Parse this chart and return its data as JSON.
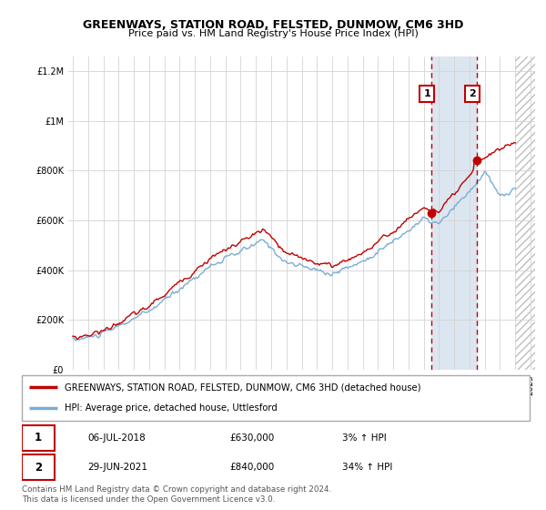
{
  "title": "GREENWAYS, STATION ROAD, FELSTED, DUNMOW, CM6 3HD",
  "subtitle": "Price paid vs. HM Land Registry's House Price Index (HPI)",
  "hpi_label": "HPI: Average price, detached house, Uttlesford",
  "property_label": "GREENWAYS, STATION ROAD, FELSTED, DUNMOW, CM6 3HD (detached house)",
  "annotation1_date": "06-JUL-2018",
  "annotation1_price": "£630,000",
  "annotation1_hpi": "3% ↑ HPI",
  "annotation2_date": "29-JUN-2021",
  "annotation2_price": "£840,000",
  "annotation2_hpi": "34% ↑ HPI",
  "footnote": "Contains HM Land Registry data © Crown copyright and database right 2024.\nThis data is licensed under the Open Government Licence v3.0.",
  "sale1_year": 2018.51,
  "sale1_price": 630000,
  "sale2_year": 2021.49,
  "sale2_price": 840000,
  "hpi_color": "#7aadd4",
  "price_color": "#c00000",
  "vline_color": "#c00000",
  "highlight_color": "#dce6f1",
  "ylim_min": 0,
  "ylim_max": 1260000,
  "xlim_min": 1994.7,
  "xlim_max": 2025.3,
  "data_end_year": 2024.0
}
